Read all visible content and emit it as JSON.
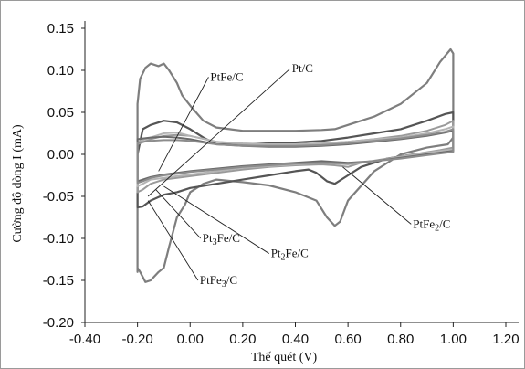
{
  "chart_data": {
    "type": "line",
    "xlabel": "Thế quét (V)",
    "ylabel": "Cường độ dòng I (mA)",
    "xlim": [
      -0.4,
      1.2
    ],
    "ylim": [
      -0.2,
      0.15
    ],
    "x_ticks": [
      "-0.40",
      "-0.20",
      "0.00",
      "0.20",
      "0.40",
      "0.60",
      "0.80",
      "1.00",
      "1.20"
    ],
    "y_ticks": [
      "0.15",
      "0.10",
      "0.05",
      "0.00",
      "-0.05",
      "-0.10",
      "-0.15",
      "-0.20"
    ],
    "grid": false,
    "series": [
      {
        "name": "PtFe₃/C",
        "color": "#7e7e7e",
        "width": 2.2,
        "x": [
          -0.2,
          -0.2,
          -0.19,
          -0.17,
          -0.15,
          -0.12,
          -0.1,
          -0.08,
          -0.05,
          -0.03,
          0.0,
          0.05,
          0.1,
          0.15,
          0.2,
          0.3,
          0.4,
          0.5,
          0.55,
          0.6,
          0.7,
          0.8,
          0.9,
          0.95,
          0.99,
          1.0,
          1.0,
          0.98,
          0.9,
          0.8,
          0.7,
          0.6,
          0.57,
          0.55,
          0.52,
          0.48,
          0.4,
          0.3,
          0.2,
          0.1,
          0.05,
          0.0,
          -0.02,
          -0.05,
          -0.08,
          -0.1,
          -0.12,
          -0.15,
          -0.17,
          -0.19,
          -0.2,
          -0.2
        ],
        "y": [
          -0.14,
          0.06,
          0.09,
          0.103,
          0.108,
          0.105,
          0.108,
          0.1,
          0.085,
          0.07,
          0.058,
          0.04,
          0.032,
          0.03,
          0.028,
          0.028,
          0.028,
          0.029,
          0.03,
          0.035,
          0.045,
          0.06,
          0.085,
          0.11,
          0.125,
          0.12,
          0.02,
          0.012,
          0.008,
          0.0,
          -0.02,
          -0.055,
          -0.08,
          -0.085,
          -0.075,
          -0.055,
          -0.045,
          -0.037,
          -0.033,
          -0.03,
          -0.035,
          -0.045,
          -0.06,
          -0.075,
          -0.11,
          -0.135,
          -0.14,
          -0.15,
          -0.152,
          -0.14,
          -0.135,
          -0.14
        ]
      },
      {
        "name": "PtFe₂/C",
        "color": "#555555",
        "width": 2.2,
        "x": [
          -0.2,
          -0.18,
          -0.15,
          -0.1,
          -0.05,
          0.0,
          0.05,
          0.1,
          0.2,
          0.3,
          0.4,
          0.5,
          0.6,
          0.7,
          0.8,
          0.9,
          0.97,
          1.0,
          1.0,
          0.95,
          0.85,
          0.75,
          0.65,
          0.6,
          0.55,
          0.52,
          0.48,
          0.45,
          0.4,
          0.3,
          0.2,
          0.1,
          0.0,
          -0.05,
          -0.1,
          -0.15,
          -0.18,
          -0.2,
          -0.2
        ],
        "y": [
          0.0,
          0.03,
          0.035,
          0.04,
          0.038,
          0.03,
          0.02,
          0.012,
          0.012,
          0.013,
          0.014,
          0.016,
          0.02,
          0.025,
          0.03,
          0.04,
          0.048,
          0.05,
          0.005,
          0.003,
          0.0,
          -0.005,
          -0.015,
          -0.025,
          -0.035,
          -0.032,
          -0.022,
          -0.018,
          -0.02,
          -0.025,
          -0.03,
          -0.035,
          -0.04,
          -0.045,
          -0.048,
          -0.055,
          -0.062,
          -0.063,
          0.0
        ]
      },
      {
        "name": "Pt₂Fe/C",
        "color": "#9a9a9a",
        "width": 2.0,
        "x": [
          -0.2,
          -0.15,
          -0.1,
          -0.05,
          0.0,
          0.1,
          0.2,
          0.3,
          0.4,
          0.5,
          0.6,
          0.7,
          0.8,
          0.9,
          0.97,
          1.0,
          1.0,
          0.95,
          0.85,
          0.75,
          0.65,
          0.6,
          0.55,
          0.5,
          0.4,
          0.3,
          0.2,
          0.1,
          0.0,
          -0.05,
          -0.1,
          -0.15,
          -0.18,
          -0.2,
          -0.2
        ],
        "y": [
          0.012,
          0.018,
          0.022,
          0.023,
          0.022,
          0.015,
          0.012,
          0.012,
          0.012,
          0.013,
          0.015,
          0.018,
          0.022,
          0.028,
          0.035,
          0.04,
          0.008,
          0.005,
          0.0,
          -0.005,
          -0.01,
          -0.015,
          -0.013,
          -0.012,
          -0.013,
          -0.015,
          -0.018,
          -0.022,
          -0.026,
          -0.028,
          -0.03,
          -0.035,
          -0.042,
          -0.045,
          0.012
        ]
      },
      {
        "name": "Pt₃Fe/C",
        "color": "#b4b4b4",
        "width": 2.0,
        "x": [
          -0.2,
          -0.15,
          -0.1,
          -0.05,
          0.0,
          0.1,
          0.2,
          0.3,
          0.4,
          0.5,
          0.6,
          0.7,
          0.8,
          0.9,
          0.97,
          1.0,
          1.0,
          0.9,
          0.8,
          0.7,
          0.6,
          0.5,
          0.4,
          0.3,
          0.2,
          0.1,
          0.0,
          -0.05,
          -0.1,
          -0.15,
          -0.18,
          -0.2,
          -0.2
        ],
        "y": [
          0.015,
          0.02,
          0.025,
          0.026,
          0.022,
          0.015,
          0.013,
          0.012,
          0.012,
          0.013,
          0.015,
          0.018,
          0.02,
          0.025,
          0.03,
          0.033,
          0.006,
          0.002,
          -0.003,
          -0.008,
          -0.012,
          -0.01,
          -0.012,
          -0.014,
          -0.016,
          -0.02,
          -0.024,
          -0.026,
          -0.028,
          -0.03,
          -0.035,
          -0.038,
          0.015
        ]
      },
      {
        "name": "PtFe/C",
        "color": "#6a6a6a",
        "width": 2.0,
        "x": [
          -0.2,
          -0.15,
          -0.1,
          -0.05,
          0.0,
          0.1,
          0.2,
          0.3,
          0.4,
          0.5,
          0.6,
          0.7,
          0.8,
          0.9,
          0.97,
          1.0,
          1.0,
          0.9,
          0.8,
          0.7,
          0.6,
          0.5,
          0.4,
          0.3,
          0.2,
          0.1,
          0.0,
          -0.05,
          -0.1,
          -0.15,
          -0.18,
          -0.2,
          -0.2
        ],
        "y": [
          0.018,
          0.02,
          0.021,
          0.02,
          0.018,
          0.012,
          0.01,
          0.009,
          0.009,
          0.01,
          0.012,
          0.015,
          0.018,
          0.022,
          0.026,
          0.028,
          0.004,
          0.0,
          -0.004,
          -0.008,
          -0.01,
          -0.008,
          -0.01,
          -0.012,
          -0.014,
          -0.017,
          -0.02,
          -0.022,
          -0.024,
          -0.027,
          -0.03,
          -0.032,
          0.018
        ]
      },
      {
        "name": "Pt/C",
        "color": "#8c8c8c",
        "width": 2.0,
        "x": [
          -0.2,
          -0.15,
          -0.1,
          -0.05,
          0.0,
          0.1,
          0.2,
          0.3,
          0.4,
          0.5,
          0.6,
          0.7,
          0.8,
          0.9,
          0.97,
          1.0,
          1.0,
          0.9,
          0.8,
          0.7,
          0.6,
          0.5,
          0.4,
          0.3,
          0.2,
          0.1,
          0.0,
          -0.05,
          -0.1,
          -0.15,
          -0.18,
          -0.2,
          -0.2
        ],
        "y": [
          0.014,
          0.016,
          0.017,
          0.017,
          0.016,
          0.012,
          0.01,
          0.01,
          0.01,
          0.011,
          0.013,
          0.016,
          0.019,
          0.023,
          0.027,
          0.03,
          0.003,
          -0.001,
          -0.005,
          -0.008,
          -0.011,
          -0.01,
          -0.011,
          -0.013,
          -0.015,
          -0.018,
          -0.021,
          -0.023,
          -0.025,
          -0.028,
          -0.032,
          -0.034,
          0.014
        ]
      }
    ],
    "annotations": [
      {
        "text": "PtFe/C",
        "sub": "",
        "rest": "",
        "at": [
          0.07,
          0.092
        ],
        "target": [
          -0.12,
          -0.02
        ]
      },
      {
        "text": "Pt/C",
        "sub": "",
        "rest": "",
        "at": [
          0.38,
          0.102
        ],
        "target": [
          -0.16,
          -0.05
        ]
      },
      {
        "text": "PtFe",
        "sub": "2",
        "rest": "/C",
        "at": [
          0.84,
          -0.083
        ],
        "target": [
          0.58,
          -0.015
        ]
      },
      {
        "text": "Pt",
        "sub": "3",
        "rest": "Fe/C",
        "at": [
          0.04,
          -0.1
        ],
        "target": [
          -0.13,
          -0.042
        ]
      },
      {
        "text": "Pt",
        "sub": "2",
        "rest": "Fe/C",
        "at": [
          0.3,
          -0.118
        ],
        "target": [
          -0.1,
          -0.038
        ]
      },
      {
        "text": "PtFe",
        "sub": "3",
        "rest": "/C",
        "at": [
          0.03,
          -0.15
        ],
        "target": [
          -0.16,
          -0.055
        ]
      }
    ]
  }
}
